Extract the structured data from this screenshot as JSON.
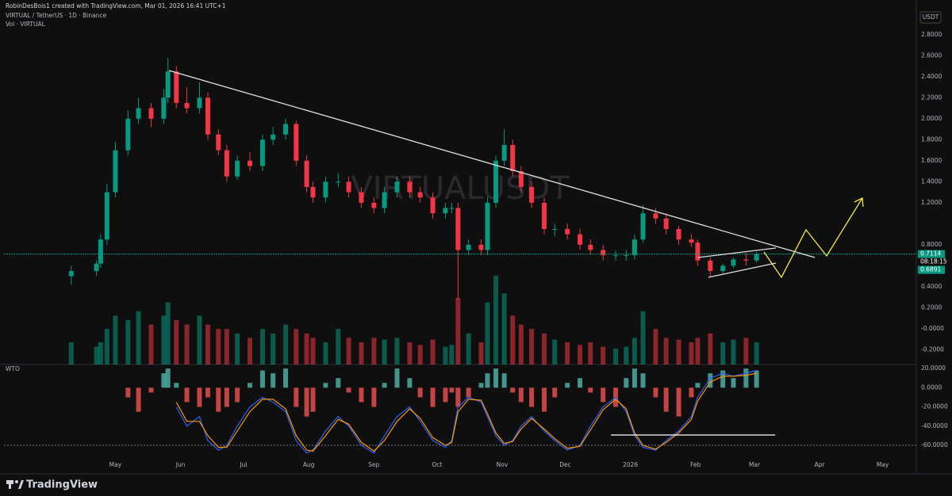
{
  "header": {
    "credit": "RobinDesBois1 created with TradingView.com, Mar 01, 2026 16:41 UTC+1",
    "symbol": "VIRTUAL / TetherUS · 1D · Binance",
    "volume_label": "Vol · VIRTUAL",
    "currency": "USDT",
    "watermark": "VIRTUALUSDT",
    "brand": "TradingView"
  },
  "chart_data": [
    {
      "type": "candlestick",
      "up_color": "#089981",
      "down_color": "#f23645",
      "x": [
        9,
        21,
        23,
        26,
        30,
        36,
        41,
        47,
        53,
        55,
        59,
        64,
        70,
        74,
        79,
        83,
        88,
        94,
        100,
        105,
        111,
        116,
        121,
        124,
        130,
        136,
        141,
        147,
        153,
        158,
        164,
        170,
        175,
        181,
        187,
        190,
        193,
        198,
        204,
        207,
        211,
        215,
        219,
        223,
        228,
        234,
        239,
        245,
        251,
        256,
        262,
        268,
        273,
        277,
        281,
        287,
        292,
        298,
        304,
        307,
        313,
        319,
        324,
        330,
        335
      ],
      "open": [
        0.5,
        0.55,
        0.62,
        0.85,
        1.3,
        1.7,
        2.0,
        2.1,
        2.0,
        2.2,
        2.45,
        2.15,
        2.1,
        2.2,
        1.85,
        1.7,
        1.45,
        1.6,
        1.55,
        1.8,
        1.85,
        1.95,
        1.6,
        1.35,
        1.25,
        1.4,
        1.4,
        1.3,
        1.2,
        1.15,
        1.3,
        1.4,
        1.3,
        1.25,
        1.1,
        1.15,
        1.15,
        0.75,
        0.8,
        0.75,
        1.2,
        1.6,
        1.75,
        1.5,
        1.35,
        1.2,
        0.95,
        0.95,
        0.9,
        0.8,
        0.75,
        0.7,
        0.7,
        0.7,
        0.85,
        1.1,
        1.05,
        0.95,
        0.85,
        0.82,
        0.65,
        0.55,
        0.6,
        0.66,
        0.65
      ],
      "high": [
        0.6,
        0.65,
        0.9,
        1.38,
        1.78,
        2.08,
        2.2,
        2.15,
        2.28,
        2.58,
        2.5,
        2.3,
        2.35,
        2.25,
        1.9,
        1.75,
        1.65,
        1.68,
        1.85,
        1.92,
        2.0,
        1.98,
        1.65,
        1.4,
        1.45,
        1.48,
        1.45,
        1.35,
        1.25,
        1.35,
        1.45,
        1.45,
        1.35,
        1.3,
        1.2,
        1.2,
        1.2,
        0.85,
        0.85,
        1.25,
        1.65,
        1.9,
        1.8,
        1.55,
        1.4,
        1.25,
        1.0,
        1.0,
        0.95,
        0.85,
        0.8,
        0.75,
        0.75,
        0.9,
        1.18,
        1.15,
        1.1,
        0.98,
        0.9,
        0.85,
        0.68,
        0.62,
        0.68,
        0.72,
        0.73
      ],
      "low": [
        0.42,
        0.5,
        0.58,
        0.8,
        1.25,
        1.65,
        1.95,
        1.92,
        1.95,
        2.15,
        2.1,
        2.05,
        2.05,
        1.8,
        1.65,
        1.4,
        1.42,
        1.5,
        1.5,
        1.75,
        1.8,
        1.55,
        1.3,
        1.2,
        1.2,
        1.35,
        1.25,
        1.15,
        1.1,
        1.1,
        1.25,
        1.25,
        1.2,
        1.05,
        1.05,
        1.1,
        0.28,
        0.7,
        0.7,
        0.7,
        1.15,
        1.55,
        1.45,
        1.3,
        1.15,
        0.9,
        0.88,
        0.85,
        0.75,
        0.7,
        0.65,
        0.65,
        0.65,
        0.66,
        0.82,
        1.0,
        0.9,
        0.8,
        0.78,
        0.6,
        0.5,
        0.52,
        0.58,
        0.6,
        0.63
      ],
      "close": [
        0.55,
        0.62,
        0.85,
        1.3,
        1.7,
        2.0,
        2.1,
        2.0,
        2.2,
        2.45,
        2.15,
        2.1,
        2.2,
        1.85,
        1.7,
        1.45,
        1.6,
        1.55,
        1.8,
        1.85,
        1.95,
        1.6,
        1.35,
        1.25,
        1.4,
        1.4,
        1.3,
        1.2,
        1.15,
        1.3,
        1.4,
        1.3,
        1.25,
        1.1,
        1.15,
        1.15,
        0.75,
        0.8,
        0.75,
        1.2,
        1.6,
        1.75,
        1.5,
        1.35,
        1.2,
        0.95,
        0.95,
        0.9,
        0.8,
        0.75,
        0.7,
        0.7,
        0.7,
        0.85,
        1.1,
        1.05,
        0.95,
        0.85,
        0.82,
        0.65,
        0.55,
        0.6,
        0.66,
        0.65,
        0.7114
      ],
      "xlim": [
        -23,
        411
      ],
      "xticks": [
        {
          "value": 30,
          "label": "May"
        },
        {
          "value": 61,
          "label": "Jun"
        },
        {
          "value": 91,
          "label": "Jul"
        },
        {
          "value": 122,
          "label": "Aug"
        },
        {
          "value": 153,
          "label": "Sep"
        },
        {
          "value": 183,
          "label": "Oct"
        },
        {
          "value": 214,
          "label": "Nov"
        },
        {
          "value": 244,
          "label": "Dec"
        },
        {
          "value": 275,
          "label": "2026"
        },
        {
          "value": 306,
          "label": "Feb"
        },
        {
          "value": 334,
          "label": "Mar"
        },
        {
          "value": 365,
          "label": "Apr"
        },
        {
          "value": 395,
          "label": "May"
        }
      ],
      "ylim": [
        -0.34,
        3.07
      ],
      "yticks": [
        {
          "value": 2.8,
          "label": "2.8000"
        },
        {
          "value": 2.6,
          "label": "2.6000"
        },
        {
          "value": 2.4,
          "label": "2.4000"
        },
        {
          "value": 2.2,
          "label": "2.2000"
        },
        {
          "value": 2.0,
          "label": "2.0000"
        },
        {
          "value": 1.8,
          "label": "1.8000"
        },
        {
          "value": 1.6,
          "label": "1.6000"
        },
        {
          "value": 1.4,
          "label": "1.4000"
        },
        {
          "value": 1.2,
          "label": "1.2000"
        },
        {
          "value": 0.8,
          "label": "0.8000"
        },
        {
          "value": 0.4,
          "label": "0.4000"
        },
        {
          "value": 0.2,
          "label": "0.2000"
        },
        {
          "value": 0,
          "label": "-0.0000"
        },
        {
          "value": -0.2,
          "label": "-0.2000"
        }
      ],
      "price_labels": [
        {
          "value": 0.7114,
          "label": "0.7114",
          "color": "#089981"
        },
        {
          "value": 0.6891,
          "label": "0.6891",
          "color": "#089981"
        }
      ],
      "countdown": "08:18:15"
    },
    {
      "type": "volume",
      "values": [
        25,
        20,
        25,
        40,
        55,
        50,
        60,
        45,
        55,
        70,
        50,
        45,
        55,
        45,
        40,
        40,
        35,
        30,
        40,
        35,
        45,
        40,
        35,
        30,
        25,
        40,
        30,
        25,
        30,
        28,
        30,
        25,
        22,
        28,
        20,
        22,
        75,
        35,
        25,
        70,
        100,
        80,
        55,
        45,
        40,
        35,
        28,
        25,
        22,
        25,
        20,
        18,
        20,
        30,
        60,
        40,
        30,
        28,
        25,
        30,
        35,
        25,
        28,
        30,
        25
      ],
      "ylim": [
        0,
        100
      ]
    },
    {
      "type": "oscillator",
      "title": "WTO",
      "pos_color": "#4db6ac",
      "neg_color": "#ef5350",
      "histogram": [
        null,
        null,
        null,
        null,
        null,
        -10,
        -25,
        -5,
        15,
        20,
        5,
        -15,
        -20,
        -10,
        -25,
        -20,
        -15,
        5,
        18,
        15,
        20,
        -20,
        -30,
        -25,
        5,
        10,
        -5,
        -15,
        -20,
        5,
        20,
        10,
        -10,
        -20,
        -15,
        -5,
        -20,
        -10,
        5,
        15,
        20,
        15,
        -5,
        -15,
        -20,
        -25,
        -10,
        5,
        10,
        -5,
        -15,
        -20,
        10,
        20,
        15,
        -10,
        -25,
        -30,
        -10,
        5,
        15,
        18,
        10,
        20,
        18
      ],
      "series": [
        {
          "color": "#2962ff",
          "values": [
            null,
            null,
            null,
            null,
            null,
            null,
            null,
            null,
            null,
            null,
            -20,
            -40,
            -30,
            -55,
            -65,
            -60,
            -40,
            -20,
            -10,
            -15,
            -25,
            -55,
            -68,
            -65,
            -45,
            -30,
            -40,
            -60,
            -68,
            -50,
            -30,
            -20,
            -35,
            -55,
            -62,
            -55,
            -20,
            -10,
            -15,
            -30,
            -50,
            -60,
            -55,
            -40,
            -30,
            -45,
            -55,
            -65,
            -60,
            -40,
            -20,
            -10,
            -25,
            -50,
            -62,
            -65,
            -55,
            -45,
            -30,
            -10,
            10,
            15,
            12,
            15,
            18
          ]
        },
        {
          "color": "#ff9800",
          "values": [
            null,
            null,
            null,
            null,
            null,
            null,
            null,
            null,
            null,
            null,
            -15,
            -35,
            -35,
            -50,
            -62,
            -62,
            -45,
            -25,
            -12,
            -12,
            -22,
            -50,
            -65,
            -66,
            -50,
            -33,
            -38,
            -57,
            -66,
            -55,
            -35,
            -22,
            -32,
            -52,
            -60,
            -57,
            -25,
            -12,
            -13,
            -27,
            -47,
            -58,
            -56,
            -43,
            -32,
            -43,
            -53,
            -63,
            -61,
            -44,
            -23,
            -12,
            -22,
            -47,
            -60,
            -64,
            -57,
            -47,
            -33,
            -14,
            6,
            12,
            12,
            13,
            15
          ]
        }
      ],
      "ylim": [
        -88,
        24.2
      ],
      "yticks": [
        {
          "value": 20,
          "label": "20.0000"
        },
        {
          "value": 0,
          "label": "0.0000"
        },
        {
          "value": -20,
          "label": "-20.0000"
        },
        {
          "value": -40,
          "label": "-40.0000"
        },
        {
          "value": -60,
          "label": "-60.0000"
        }
      ],
      "oversold_level": -60
    }
  ]
}
